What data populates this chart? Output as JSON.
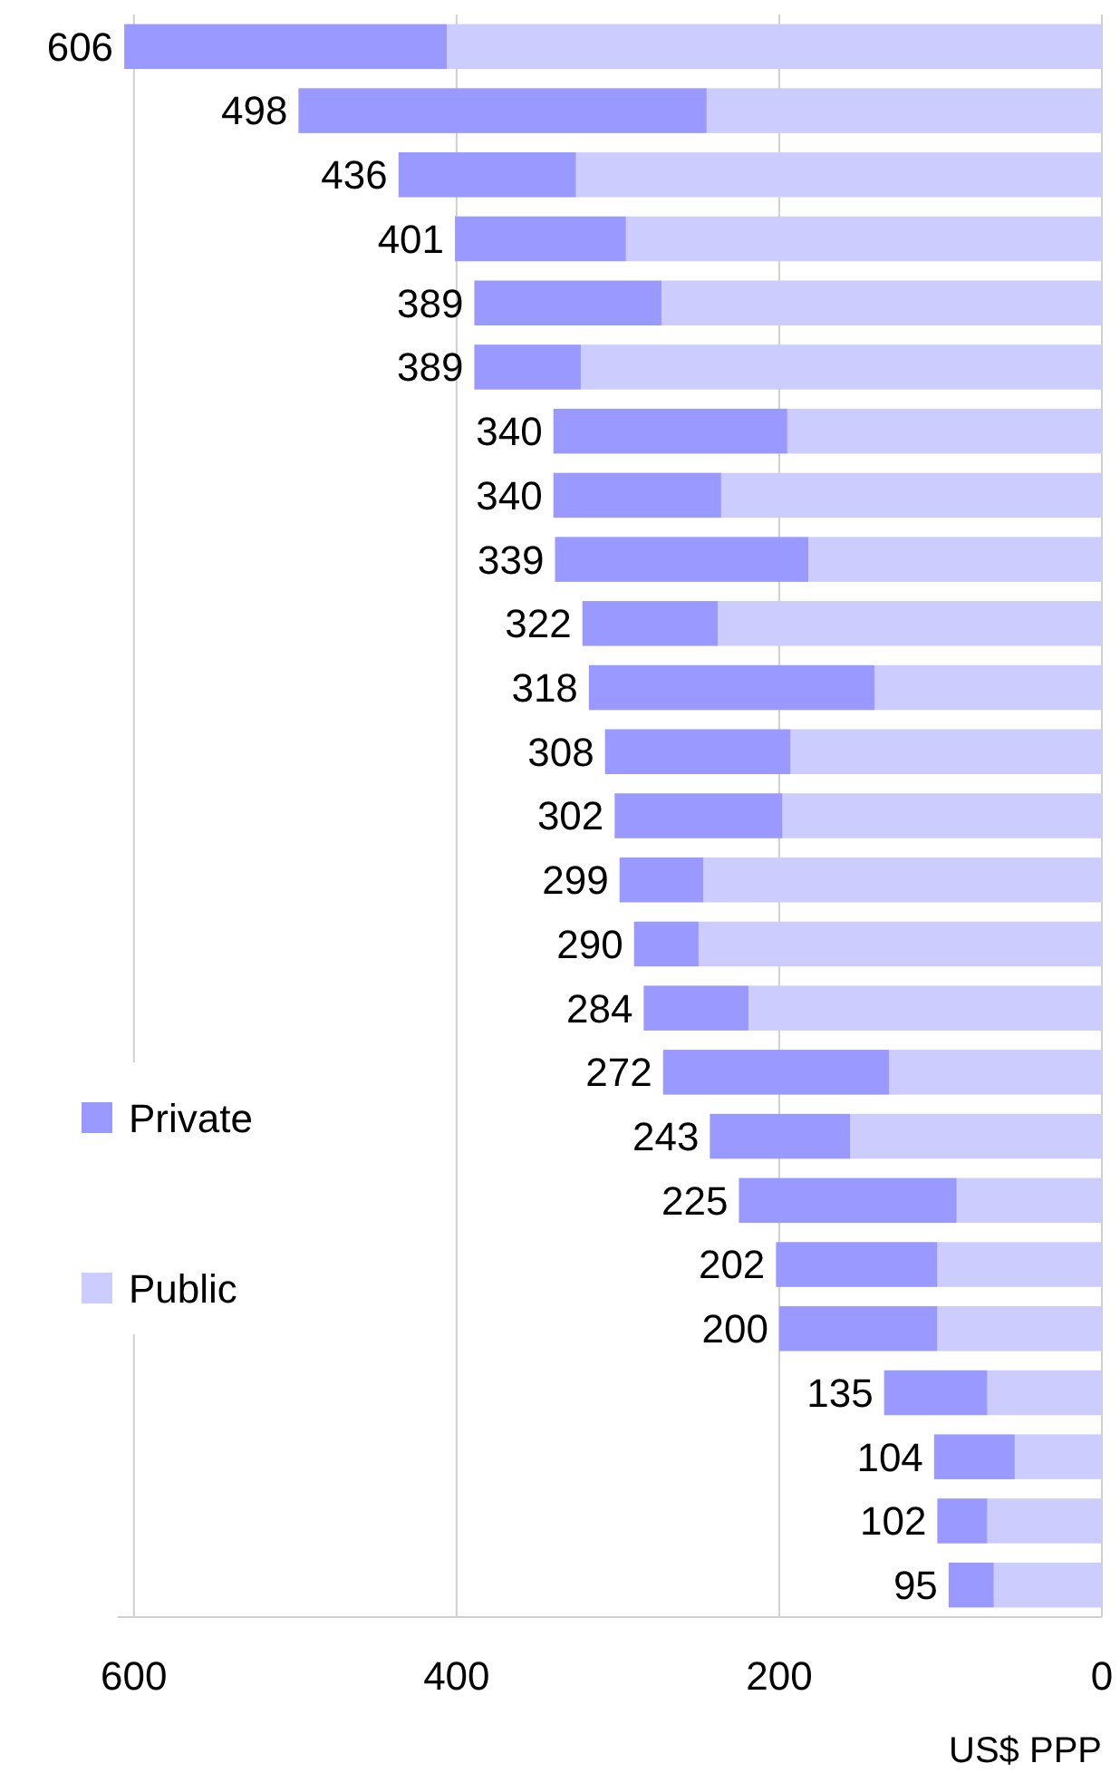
{
  "chart_data": {
    "type": "bar",
    "orientation": "horizontal",
    "stacked": true,
    "xlabel": "US$ PPP",
    "categories": [
      null,
      null,
      null,
      null,
      null,
      null,
      null,
      null,
      null,
      null,
      null,
      null,
      null,
      null,
      null,
      null,
      null,
      null,
      null,
      null,
      null,
      null,
      null,
      null,
      null
    ],
    "series": [
      {
        "name": "Public",
        "color": "#ccccff",
        "values": [
          406,
          245,
          326,
          295,
          273,
          323,
          195,
          236,
          182,
          238,
          141,
          193,
          198,
          247,
          250,
          219,
          132,
          156,
          90,
          102,
          102,
          71,
          54,
          71,
          67
        ]
      },
      {
        "name": "Private",
        "color": "#9999ff",
        "values": [
          200,
          253,
          110,
          106,
          116,
          66,
          145,
          104,
          157,
          84,
          177,
          115,
          104,
          52,
          40,
          65,
          140,
          87,
          135,
          100,
          98,
          64,
          50,
          31,
          28
        ]
      }
    ],
    "totals": [
      "606",
      "498",
      "436",
      "401",
      "389",
      "389",
      "340",
      "340",
      "339",
      "322",
      "318",
      "308",
      "302",
      "299",
      "290",
      "284",
      "272",
      "243",
      "225",
      "202",
      "200",
      "135",
      "104",
      "102",
      "95"
    ],
    "xlim": [
      610,
      0
    ],
    "xticks": [
      600,
      400,
      200,
      0
    ],
    "grid": "x",
    "legend": "left"
  }
}
